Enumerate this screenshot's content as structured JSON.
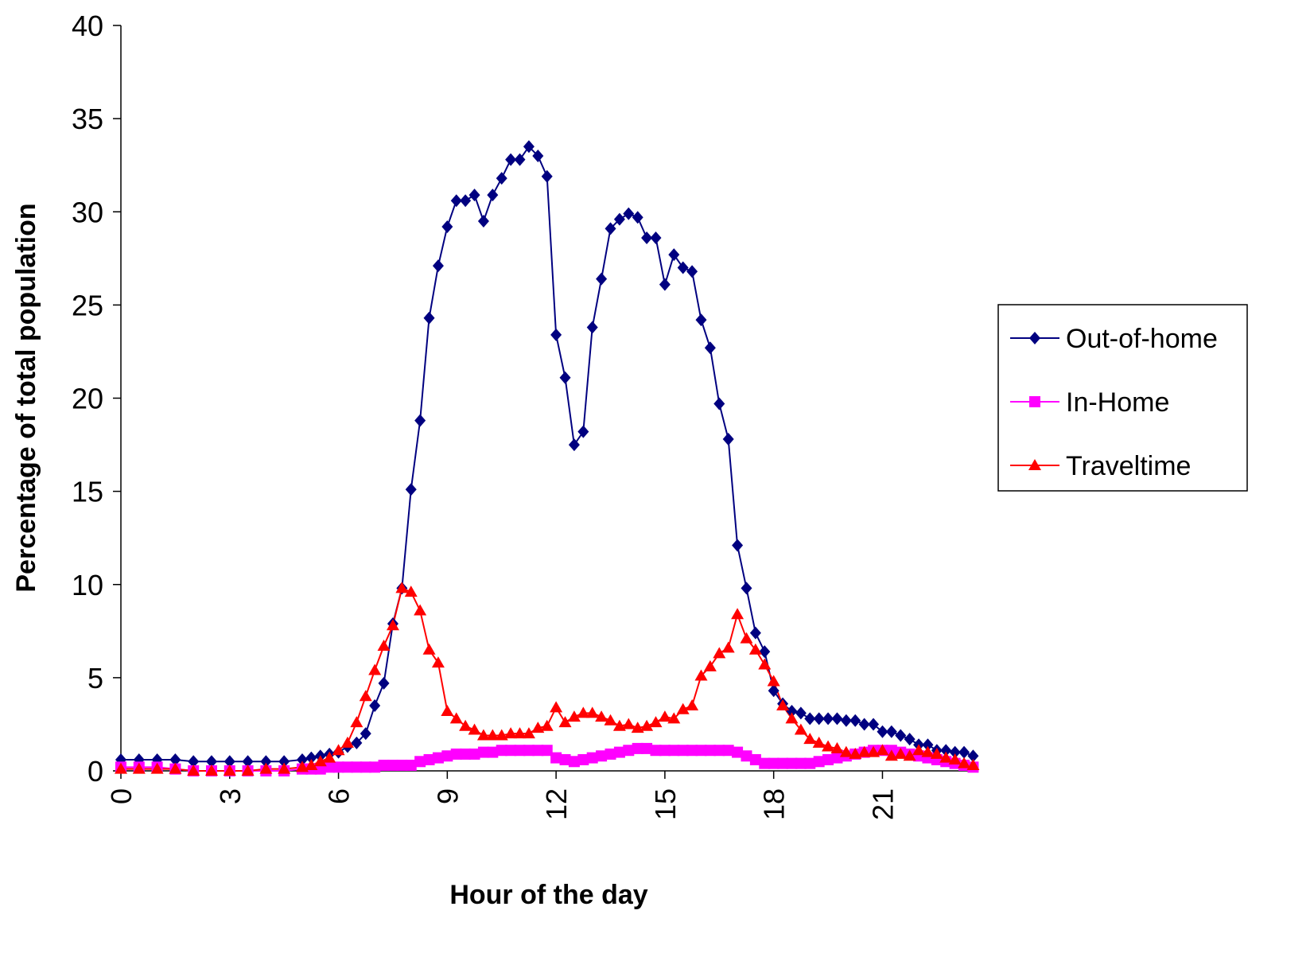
{
  "chart_data": {
    "type": "line",
    "x_label": "Hour of the day",
    "y_label": "Percentage of total population",
    "x": [
      0,
      0.5,
      1,
      1.5,
      2,
      2.5,
      3,
      3.5,
      4,
      4.5,
      5,
      5.25,
      5.5,
      5.75,
      6,
      6.25,
      6.5,
      6.75,
      7,
      7.25,
      7.5,
      7.75,
      8,
      8.25,
      8.5,
      8.75,
      9,
      9.25,
      9.5,
      9.75,
      10,
      10.25,
      10.5,
      10.75,
      11,
      11.25,
      11.5,
      11.75,
      12,
      12.25,
      12.5,
      12.75,
      13,
      13.25,
      13.5,
      13.75,
      14,
      14.25,
      14.5,
      14.75,
      15,
      15.25,
      15.5,
      15.75,
      16,
      16.25,
      16.5,
      16.75,
      17,
      17.25,
      17.5,
      17.75,
      18,
      18.25,
      18.5,
      18.75,
      19,
      19.25,
      19.5,
      19.75,
      20,
      20.25,
      20.5,
      20.75,
      21,
      21.25,
      21.5,
      21.75,
      22,
      22.25,
      22.5,
      22.75,
      23,
      23.25,
      23.5
    ],
    "series": [
      {
        "name": "Out-of-home",
        "color": "#000080",
        "marker": "diamond",
        "values": [
          0.6,
          0.6,
          0.6,
          0.6,
          0.5,
          0.5,
          0.5,
          0.5,
          0.5,
          0.5,
          0.6,
          0.7,
          0.8,
          0.9,
          1.0,
          1.3,
          1.5,
          2.0,
          3.5,
          4.7,
          7.9,
          9.8,
          15.1,
          18.8,
          24.3,
          27.1,
          29.2,
          30.6,
          30.6,
          30.9,
          29.5,
          30.9,
          31.8,
          32.8,
          32.8,
          33.5,
          33.0,
          31.9,
          23.4,
          21.1,
          17.5,
          18.2,
          23.8,
          26.4,
          29.1,
          29.6,
          29.9,
          29.7,
          28.6,
          28.6,
          26.1,
          27.7,
          27.0,
          26.8,
          24.2,
          22.7,
          19.7,
          17.8,
          12.1,
          9.8,
          7.4,
          6.4,
          4.3,
          3.6,
          3.2,
          3.1,
          2.8,
          2.8,
          2.8,
          2.8,
          2.7,
          2.7,
          2.5,
          2.5,
          2.1,
          2.1,
          1.9,
          1.7,
          1.4,
          1.4,
          1.1,
          1.1,
          1.0,
          1.0,
          0.8
        ]
      },
      {
        "name": "In-Home",
        "color": "#ff00ff",
        "marker": "square",
        "values": [
          0.2,
          0.2,
          0.2,
          0.1,
          0.0,
          0.0,
          0.0,
          0.0,
          0.0,
          0.0,
          0.1,
          0.1,
          0.1,
          0.2,
          0.2,
          0.2,
          0.2,
          0.2,
          0.2,
          0.3,
          0.3,
          0.3,
          0.3,
          0.5,
          0.6,
          0.7,
          0.8,
          0.9,
          0.9,
          0.9,
          1.0,
          1.0,
          1.1,
          1.1,
          1.1,
          1.1,
          1.1,
          1.1,
          0.7,
          0.6,
          0.5,
          0.6,
          0.7,
          0.8,
          0.9,
          1.0,
          1.1,
          1.2,
          1.2,
          1.1,
          1.1,
          1.1,
          1.1,
          1.1,
          1.1,
          1.1,
          1.1,
          1.1,
          1.0,
          0.8,
          0.6,
          0.4,
          0.4,
          0.4,
          0.4,
          0.4,
          0.4,
          0.5,
          0.6,
          0.7,
          0.8,
          0.9,
          1.0,
          1.1,
          1.1,
          1.1,
          1.0,
          0.9,
          0.8,
          0.7,
          0.6,
          0.5,
          0.4,
          0.3,
          0.2
        ]
      },
      {
        "name": "Traveltime",
        "color": "#ff0000",
        "marker": "triangle",
        "values": [
          0.1,
          0.1,
          0.1,
          0.1,
          0.0,
          0.0,
          0.0,
          0.0,
          0.1,
          0.1,
          0.2,
          0.3,
          0.5,
          0.7,
          1.1,
          1.5,
          2.6,
          4.0,
          5.4,
          6.7,
          7.8,
          9.8,
          9.6,
          8.6,
          6.5,
          5.8,
          3.2,
          2.8,
          2.4,
          2.2,
          1.9,
          1.9,
          1.9,
          2.0,
          2.0,
          2.0,
          2.3,
          2.4,
          3.4,
          2.6,
          2.9,
          3.1,
          3.1,
          2.9,
          2.7,
          2.4,
          2.5,
          2.3,
          2.4,
          2.6,
          2.9,
          2.8,
          3.3,
          3.5,
          5.1,
          5.6,
          6.3,
          6.6,
          8.4,
          7.1,
          6.5,
          5.7,
          4.8,
          3.5,
          2.8,
          2.2,
          1.7,
          1.5,
          1.3,
          1.2,
          1.0,
          0.9,
          1.0,
          1.0,
          1.1,
          0.8,
          0.9,
          0.8,
          1.1,
          1.0,
          0.9,
          0.7,
          0.6,
          0.4,
          0.3
        ]
      }
    ],
    "xlim": [
      0,
      23.6
    ],
    "xticks": [
      0,
      3,
      6,
      9,
      12,
      15,
      18,
      21
    ],
    "ylim": [
      0,
      40
    ],
    "yticks": [
      0,
      5,
      10,
      15,
      20,
      25,
      30,
      35,
      40
    ],
    "grid": false,
    "legend": "right"
  }
}
